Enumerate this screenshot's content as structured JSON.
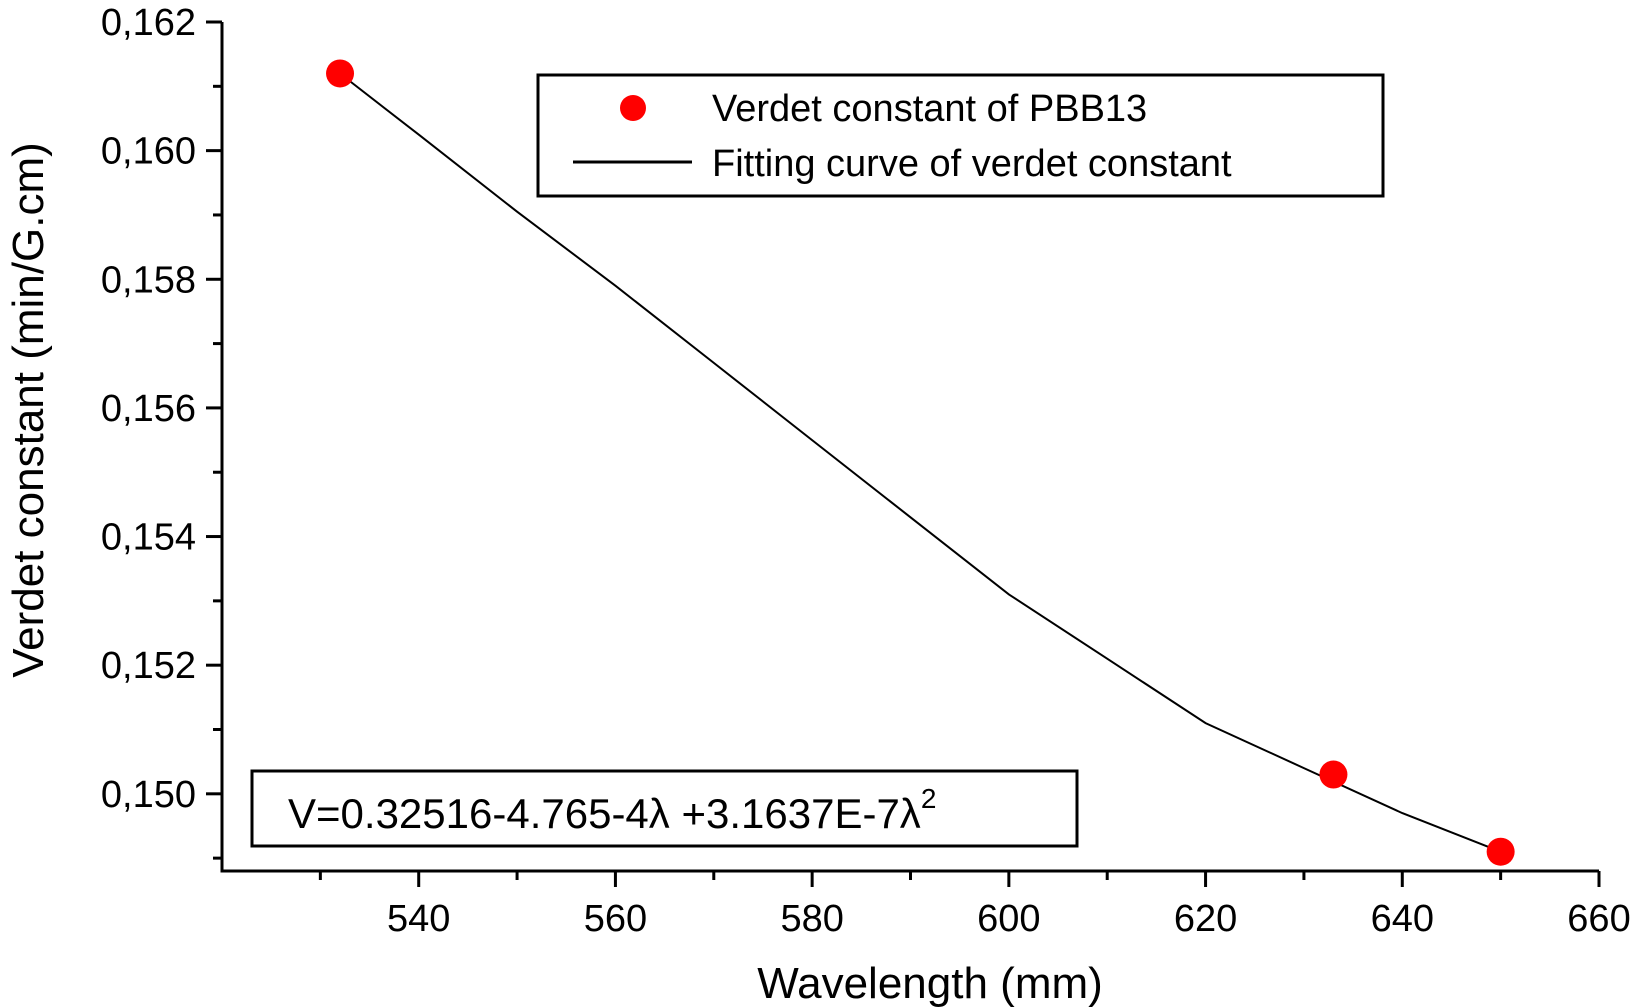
{
  "chart_data": {
    "type": "scatter",
    "xlabel": "Wavelength (mm)",
    "ylabel": "Verdet constant (min/G.cm)",
    "xlim": [
      520,
      660
    ],
    "ylim": [
      0.1488,
      0.162
    ],
    "xticks": [
      {
        "value": 540,
        "label": "540"
      },
      {
        "value": 560,
        "label": "560"
      },
      {
        "value": 580,
        "label": "580"
      },
      {
        "value": 600,
        "label": "600"
      },
      {
        "value": 620,
        "label": "620"
      },
      {
        "value": 640,
        "label": "640"
      },
      {
        "value": 660,
        "label": "660"
      }
    ],
    "yticks": [
      {
        "value": 0.15,
        "label": "0,150"
      },
      {
        "value": 0.152,
        "label": "0,152"
      },
      {
        "value": 0.154,
        "label": "0,154"
      },
      {
        "value": 0.156,
        "label": "0,156"
      },
      {
        "value": 0.158,
        "label": "0,158"
      },
      {
        "value": 0.16,
        "label": "0,160"
      },
      {
        "value": 0.162,
        "label": "0,162"
      }
    ],
    "series": [
      {
        "name": "Verdet constant of PBB13",
        "kind": "scatter",
        "color": "#ff0000",
        "x": [
          532,
          633,
          650
        ],
        "y": [
          0.1612,
          0.1503,
          0.1491
        ]
      },
      {
        "name": "Fitting curve of verdet constant",
        "kind": "line",
        "color": "#000000",
        "x": [
          532,
          540,
          550,
          560,
          570,
          580,
          590,
          600,
          610,
          620,
          630,
          640,
          650
        ],
        "y": [
          0.1612,
          0.16025,
          0.15905,
          0.1579,
          0.1567,
          0.1555,
          0.1543,
          0.1531,
          0.1521,
          0.1511,
          0.1504,
          0.1497,
          0.1491
        ]
      }
    ],
    "equation": {
      "main": "V=0.32516-4.765-4λ +3.1637E-7λ",
      "superscript": "2"
    },
    "legend_position": "top-center",
    "grid": false
  }
}
